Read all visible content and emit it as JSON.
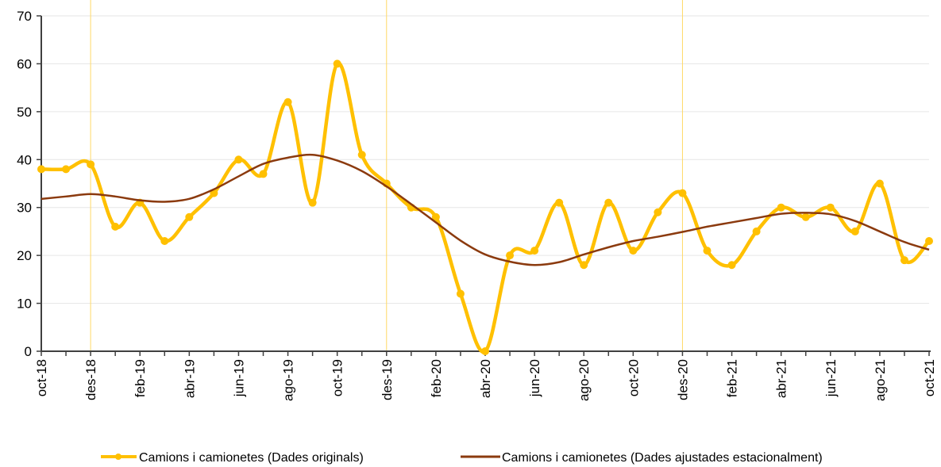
{
  "chart_data": {
    "type": "line",
    "title": "",
    "xlabel": "",
    "ylabel": "",
    "ylim": [
      0,
      70
    ],
    "y_ticks": [
      0,
      10,
      20,
      30,
      40,
      50,
      60,
      70
    ],
    "grid": "horizontal",
    "legend_position": "bottom",
    "x": [
      "oct-18",
      "nov-18",
      "des-18",
      "gen-19",
      "feb-19",
      "mar-19",
      "abr-19",
      "mai-19",
      "jun-19",
      "jul-19",
      "ago-19",
      "set-19",
      "oct-19",
      "nov-19",
      "des-19",
      "gen-20",
      "feb-20",
      "mar-20",
      "abr-20",
      "mai-20",
      "jun-20",
      "jul-20",
      "ago-20",
      "set-20",
      "oct-20",
      "nov-20",
      "des-20",
      "gen-21",
      "feb-21",
      "mar-21",
      "abr-21",
      "mai-21",
      "jun-21",
      "jul-21",
      "ago-21",
      "set-21",
      "oct-21"
    ],
    "tick_labels": [
      "oct-18",
      "des-18",
      "feb-19",
      "abr-19",
      "jun-19",
      "ago-19",
      "oct-19",
      "des-19",
      "feb-20",
      "abr-20",
      "jun-20",
      "ago-20",
      "oct-20",
      "des-20",
      "feb-21",
      "abr-21",
      "jun-21",
      "ago-21",
      "oct-21"
    ],
    "year_separators": [
      "des-18",
      "des-19",
      "des-20"
    ],
    "series": [
      {
        "name": "Camions i camionetes (Dades originals)",
        "color": "#FFC000",
        "smooth": true,
        "markers": true,
        "values": [
          38,
          38,
          39,
          26,
          31,
          23,
          28,
          33,
          40,
          37,
          52,
          31,
          60,
          41,
          35,
          30,
          28,
          12,
          0,
          20,
          21,
          31,
          18,
          31,
          21,
          29,
          33,
          21,
          18,
          25,
          30,
          28,
          30,
          25,
          35,
          19,
          23
        ]
      },
      {
        "name": "Camions i camionetes (Dades ajustades estacionalment)",
        "color": "#8B3A0E",
        "smooth": true,
        "markers": false,
        "values": [
          31.8,
          32.3,
          32.8,
          32.3,
          31.5,
          31.2,
          31.8,
          33.8,
          36.5,
          39.1,
          40.4,
          41.0,
          39.8,
          37.6,
          34.4,
          30.7,
          26.9,
          23.1,
          20.2,
          18.7,
          18.0,
          18.6,
          20.2,
          21.7,
          23.0,
          23.9,
          24.9,
          26.0,
          26.9,
          27.8,
          28.7,
          28.9,
          28.6,
          27.2,
          25.0,
          22.8,
          21.2
        ]
      }
    ]
  }
}
